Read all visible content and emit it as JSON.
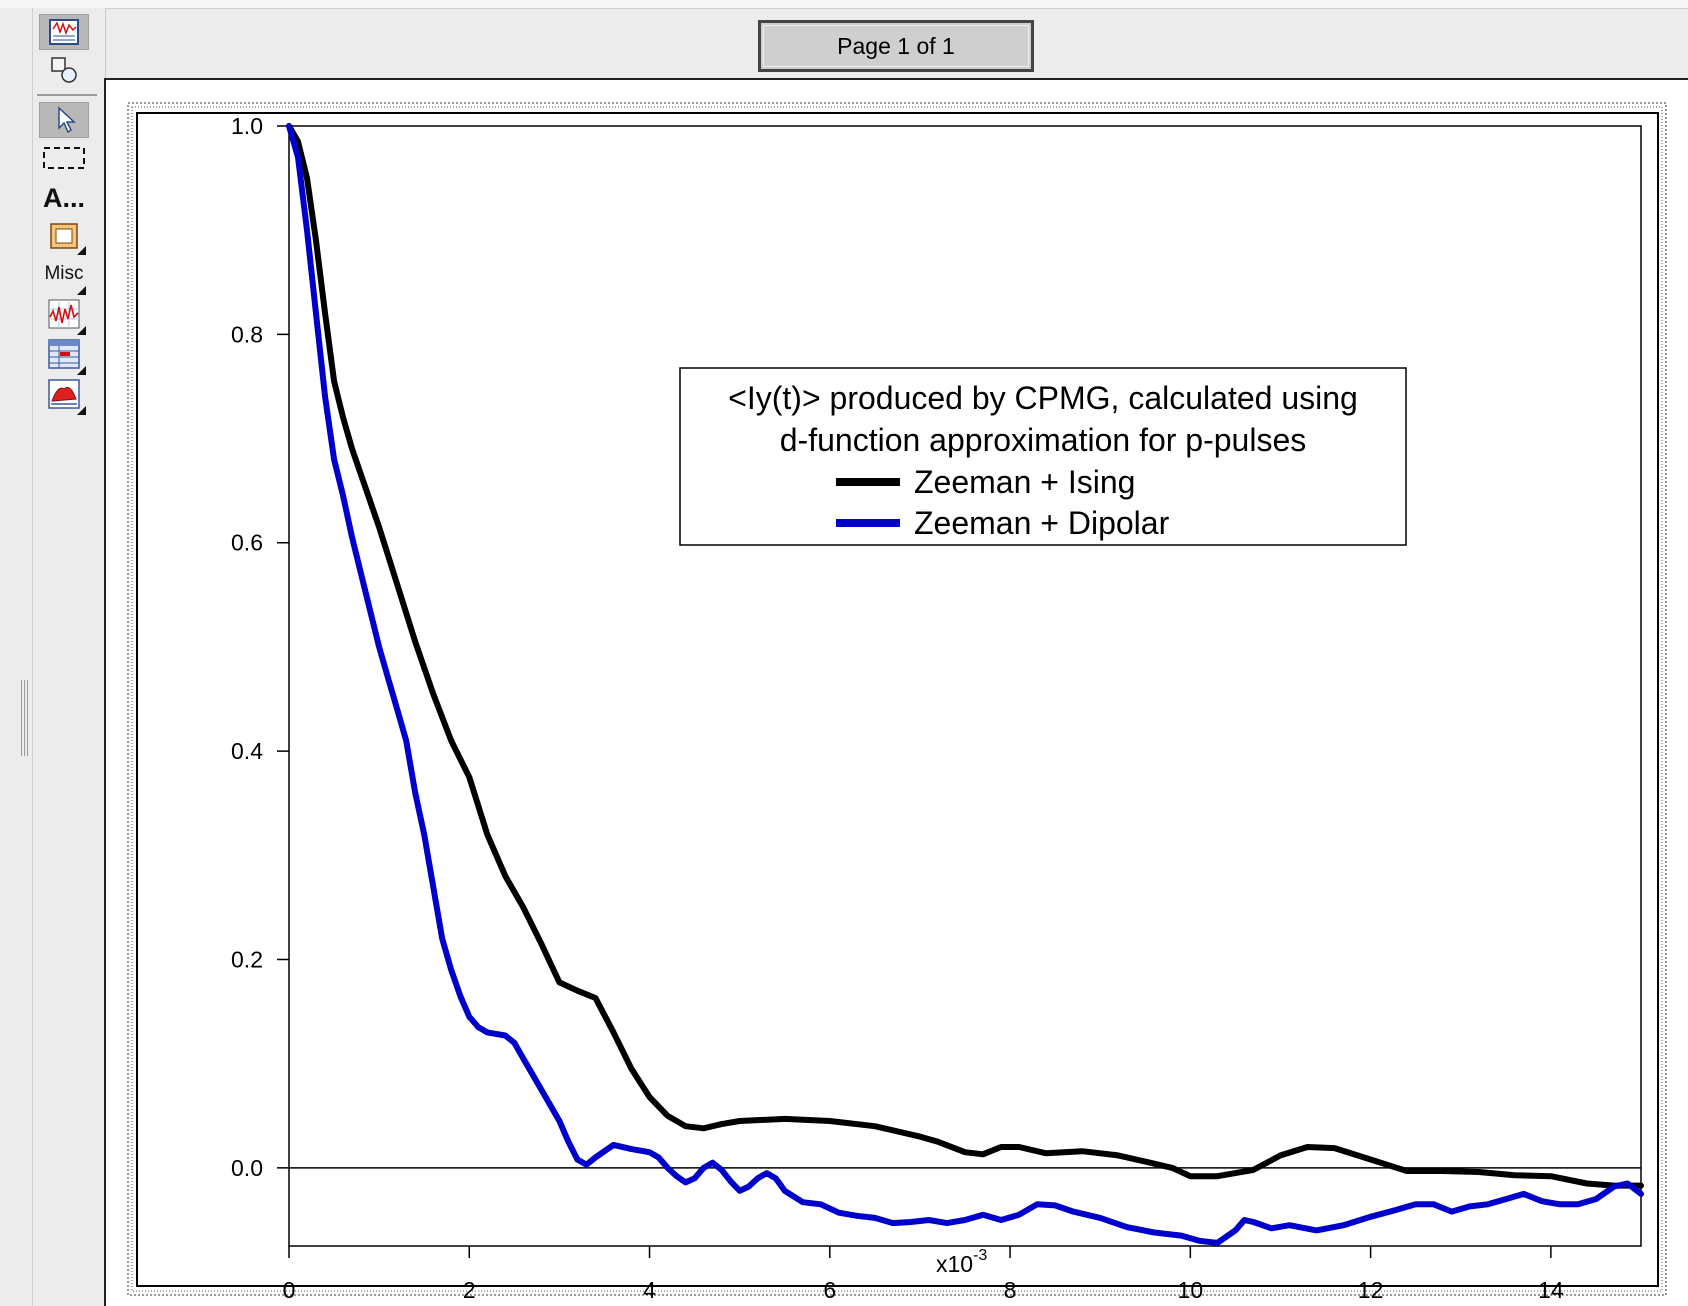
{
  "window": {
    "page_indicator": "Page 1 of 1"
  },
  "toolbar": {
    "text_tool_label": "A...",
    "misc_label": "Misc",
    "icons": [
      "graph-window-icon",
      "drawing-shapes-icon",
      "pointer-arrow-icon",
      "marquee-select-icon",
      "text-tool-icon",
      "frame-tool-icon",
      "misc-tool-icon",
      "insert-graph-icon",
      "insert-table-icon",
      "insert-image-icon"
    ]
  },
  "chart_data": {
    "type": "line",
    "title": "",
    "xlabel": "",
    "x_multiplier_base": "x10",
    "x_multiplier_exp": "-3",
    "ylabel": "",
    "xlim": [
      0,
      15
    ],
    "ylim": [
      -0.075,
      1.0
    ],
    "x_ticks": [
      0,
      2,
      4,
      6,
      8,
      10,
      12,
      14
    ],
    "y_ticks": [
      0.0,
      0.2,
      0.4,
      0.6,
      0.8,
      1.0
    ],
    "x_tick_labels": [
      "0",
      "2",
      "4",
      "6",
      "8",
      "10",
      "12",
      "14"
    ],
    "y_tick_labels": [
      "0.0",
      "0.2",
      "0.4",
      "0.6",
      "0.8",
      "1.0"
    ],
    "zero_line": true,
    "legend": {
      "placement": "upper-center",
      "title_line1": "<Iy(t)> produced by CPMG, calculated using",
      "title_line2": "d-function approximation for p-pulses"
    },
    "series": [
      {
        "name": "Zeeman + Ising",
        "color": "#000000",
        "points": [
          [
            0,
            1.0
          ],
          [
            0.1,
            0.985
          ],
          [
            0.2,
            0.95
          ],
          [
            0.3,
            0.89
          ],
          [
            0.4,
            0.82
          ],
          [
            0.5,
            0.755
          ],
          [
            0.6,
            0.72
          ],
          [
            0.7,
            0.69
          ],
          [
            0.8,
            0.665
          ],
          [
            1.0,
            0.615
          ],
          [
            1.2,
            0.56
          ],
          [
            1.4,
            0.505
          ],
          [
            1.6,
            0.455
          ],
          [
            1.8,
            0.41
          ],
          [
            2.0,
            0.375
          ],
          [
            2.2,
            0.32
          ],
          [
            2.4,
            0.28
          ],
          [
            2.6,
            0.25
          ],
          [
            2.8,
            0.215
          ],
          [
            3.0,
            0.178
          ],
          [
            3.2,
            0.17
          ],
          [
            3.4,
            0.163
          ],
          [
            3.6,
            0.13
          ],
          [
            3.8,
            0.095
          ],
          [
            4.0,
            0.068
          ],
          [
            4.2,
            0.05
          ],
          [
            4.4,
            0.04
          ],
          [
            4.6,
            0.038
          ],
          [
            4.8,
            0.042
          ],
          [
            5.0,
            0.045
          ],
          [
            5.5,
            0.047
          ],
          [
            6.0,
            0.045
          ],
          [
            6.5,
            0.04
          ],
          [
            7.0,
            0.03
          ],
          [
            7.2,
            0.025
          ],
          [
            7.5,
            0.015
          ],
          [
            7.7,
            0.013
          ],
          [
            7.9,
            0.02
          ],
          [
            8.1,
            0.02
          ],
          [
            8.4,
            0.014
          ],
          [
            8.8,
            0.016
          ],
          [
            9.2,
            0.012
          ],
          [
            9.5,
            0.006
          ],
          [
            9.8,
            0.0
          ],
          [
            10.0,
            -0.008
          ],
          [
            10.3,
            -0.008
          ],
          [
            10.7,
            -0.002
          ],
          [
            11.0,
            0.012
          ],
          [
            11.3,
            0.02
          ],
          [
            11.6,
            0.019
          ],
          [
            12.0,
            0.008
          ],
          [
            12.4,
            -0.003
          ],
          [
            12.8,
            -0.003
          ],
          [
            13.2,
            -0.004
          ],
          [
            13.6,
            -0.007
          ],
          [
            14.0,
            -0.008
          ],
          [
            14.4,
            -0.015
          ],
          [
            14.7,
            -0.017
          ],
          [
            15.0,
            -0.017
          ]
        ]
      },
      {
        "name": "Zeeman + Dipolar",
        "color": "#0000cc",
        "points": [
          [
            0,
            1.0
          ],
          [
            0.1,
            0.97
          ],
          [
            0.2,
            0.9
          ],
          [
            0.3,
            0.82
          ],
          [
            0.4,
            0.74
          ],
          [
            0.5,
            0.68
          ],
          [
            0.6,
            0.645
          ],
          [
            0.7,
            0.605
          ],
          [
            0.8,
            0.57
          ],
          [
            0.9,
            0.535
          ],
          [
            1.0,
            0.5
          ],
          [
            1.1,
            0.47
          ],
          [
            1.2,
            0.44
          ],
          [
            1.3,
            0.41
          ],
          [
            1.4,
            0.36
          ],
          [
            1.5,
            0.32
          ],
          [
            1.6,
            0.27
          ],
          [
            1.7,
            0.22
          ],
          [
            1.8,
            0.19
          ],
          [
            1.9,
            0.165
          ],
          [
            2.0,
            0.145
          ],
          [
            2.1,
            0.135
          ],
          [
            2.2,
            0.13
          ],
          [
            2.4,
            0.127
          ],
          [
            2.5,
            0.12
          ],
          [
            2.6,
            0.105
          ],
          [
            2.8,
            0.075
          ],
          [
            3.0,
            0.045
          ],
          [
            3.1,
            0.025
          ],
          [
            3.2,
            0.008
          ],
          [
            3.3,
            0.003
          ],
          [
            3.4,
            0.01
          ],
          [
            3.6,
            0.022
          ],
          [
            3.8,
            0.018
          ],
          [
            4.0,
            0.015
          ],
          [
            4.1,
            0.01
          ],
          [
            4.2,
            0.0
          ],
          [
            4.3,
            -0.008
          ],
          [
            4.4,
            -0.014
          ],
          [
            4.5,
            -0.01
          ],
          [
            4.6,
            0.0
          ],
          [
            4.7,
            0.005
          ],
          [
            4.8,
            -0.002
          ],
          [
            4.9,
            -0.013
          ],
          [
            5.0,
            -0.022
          ],
          [
            5.1,
            -0.018
          ],
          [
            5.2,
            -0.01
          ],
          [
            5.3,
            -0.005
          ],
          [
            5.4,
            -0.01
          ],
          [
            5.5,
            -0.022
          ],
          [
            5.7,
            -0.033
          ],
          [
            5.9,
            -0.035
          ],
          [
            6.1,
            -0.043
          ],
          [
            6.3,
            -0.046
          ],
          [
            6.5,
            -0.048
          ],
          [
            6.7,
            -0.053
          ],
          [
            6.9,
            -0.052
          ],
          [
            7.1,
            -0.05
          ],
          [
            7.3,
            -0.053
          ],
          [
            7.5,
            -0.05
          ],
          [
            7.7,
            -0.045
          ],
          [
            7.9,
            -0.05
          ],
          [
            8.1,
            -0.045
          ],
          [
            8.3,
            -0.035
          ],
          [
            8.5,
            -0.036
          ],
          [
            8.7,
            -0.042
          ],
          [
            9.0,
            -0.048
          ],
          [
            9.3,
            -0.057
          ],
          [
            9.6,
            -0.062
          ],
          [
            9.9,
            -0.065
          ],
          [
            10.1,
            -0.07
          ],
          [
            10.3,
            -0.072
          ],
          [
            10.5,
            -0.06
          ],
          [
            10.6,
            -0.05
          ],
          [
            10.7,
            -0.052
          ],
          [
            10.9,
            -0.058
          ],
          [
            11.1,
            -0.055
          ],
          [
            11.4,
            -0.06
          ],
          [
            11.7,
            -0.055
          ],
          [
            12.0,
            -0.047
          ],
          [
            12.3,
            -0.04
          ],
          [
            12.5,
            -0.035
          ],
          [
            12.7,
            -0.035
          ],
          [
            12.9,
            -0.042
          ],
          [
            13.1,
            -0.037
          ],
          [
            13.3,
            -0.035
          ],
          [
            13.5,
            -0.03
          ],
          [
            13.7,
            -0.025
          ],
          [
            13.9,
            -0.032
          ],
          [
            14.1,
            -0.035
          ],
          [
            14.3,
            -0.035
          ],
          [
            14.5,
            -0.03
          ],
          [
            14.7,
            -0.018
          ],
          [
            14.85,
            -0.015
          ],
          [
            15.0,
            -0.025
          ]
        ]
      }
    ]
  }
}
